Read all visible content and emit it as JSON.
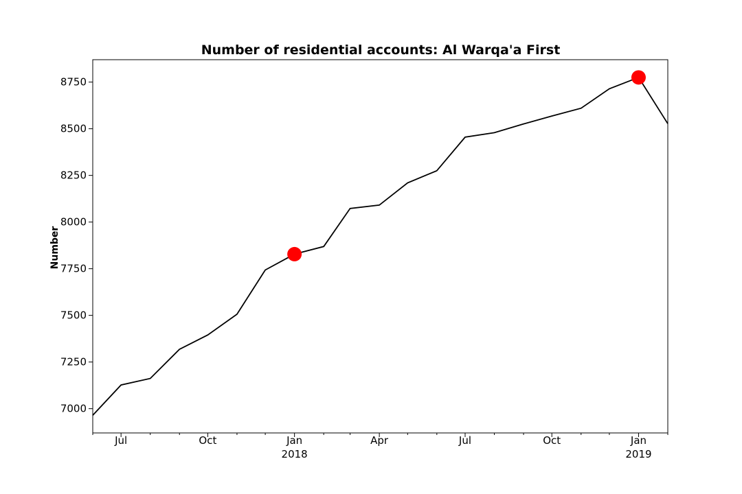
{
  "chart_data": {
    "type": "line",
    "title": "Number of residential accounts: Al Warqa'a First",
    "xlabel": "",
    "ylabel": "Number",
    "grid": false,
    "xlim": [
      "2017-06-01",
      "2019-02-01"
    ],
    "ylim": [
      6870,
      8870
    ],
    "y_ticks": [
      7000,
      7250,
      7500,
      7750,
      8000,
      8250,
      8500,
      8750
    ],
    "x_major_ticks": [
      {
        "date": "2017-07-01",
        "label": "Jul",
        "sublabel": ""
      },
      {
        "date": "2017-10-01",
        "label": "Oct",
        "sublabel": ""
      },
      {
        "date": "2018-01-01",
        "label": "Jan",
        "sublabel": "2018"
      },
      {
        "date": "2018-04-01",
        "label": "Apr",
        "sublabel": ""
      },
      {
        "date": "2018-07-01",
        "label": "Jul",
        "sublabel": ""
      },
      {
        "date": "2018-10-01",
        "label": "Oct",
        "sublabel": ""
      },
      {
        "date": "2019-01-01",
        "label": "Jan",
        "sublabel": "2019"
      }
    ],
    "series": [
      {
        "color": "#000000",
        "x": [
          "2017-06-01",
          "2017-07-01",
          "2017-08-01",
          "2017-09-01",
          "2017-10-01",
          "2017-11-01",
          "2017-12-01",
          "2018-01-01",
          "2018-02-01",
          "2018-03-01",
          "2018-04-01",
          "2018-05-01",
          "2018-06-01",
          "2018-07-01",
          "2018-08-01",
          "2018-09-01",
          "2018-10-01",
          "2018-11-01",
          "2018-12-01",
          "2019-01-01",
          "2019-02-01"
        ],
        "values": [
          6965,
          7127,
          7162,
          7318,
          7395,
          7506,
          7743,
          7828,
          7869,
          8073,
          8091,
          8210,
          8275,
          8455,
          8479,
          8526,
          8568,
          8610,
          8714,
          8775,
          8527
        ]
      }
    ],
    "highlights": [
      {
        "x": "2018-01-01",
        "value": 7828,
        "color": "#ff0000"
      },
      {
        "x": "2019-01-01",
        "value": 8775,
        "color": "#ff0000"
      }
    ]
  }
}
